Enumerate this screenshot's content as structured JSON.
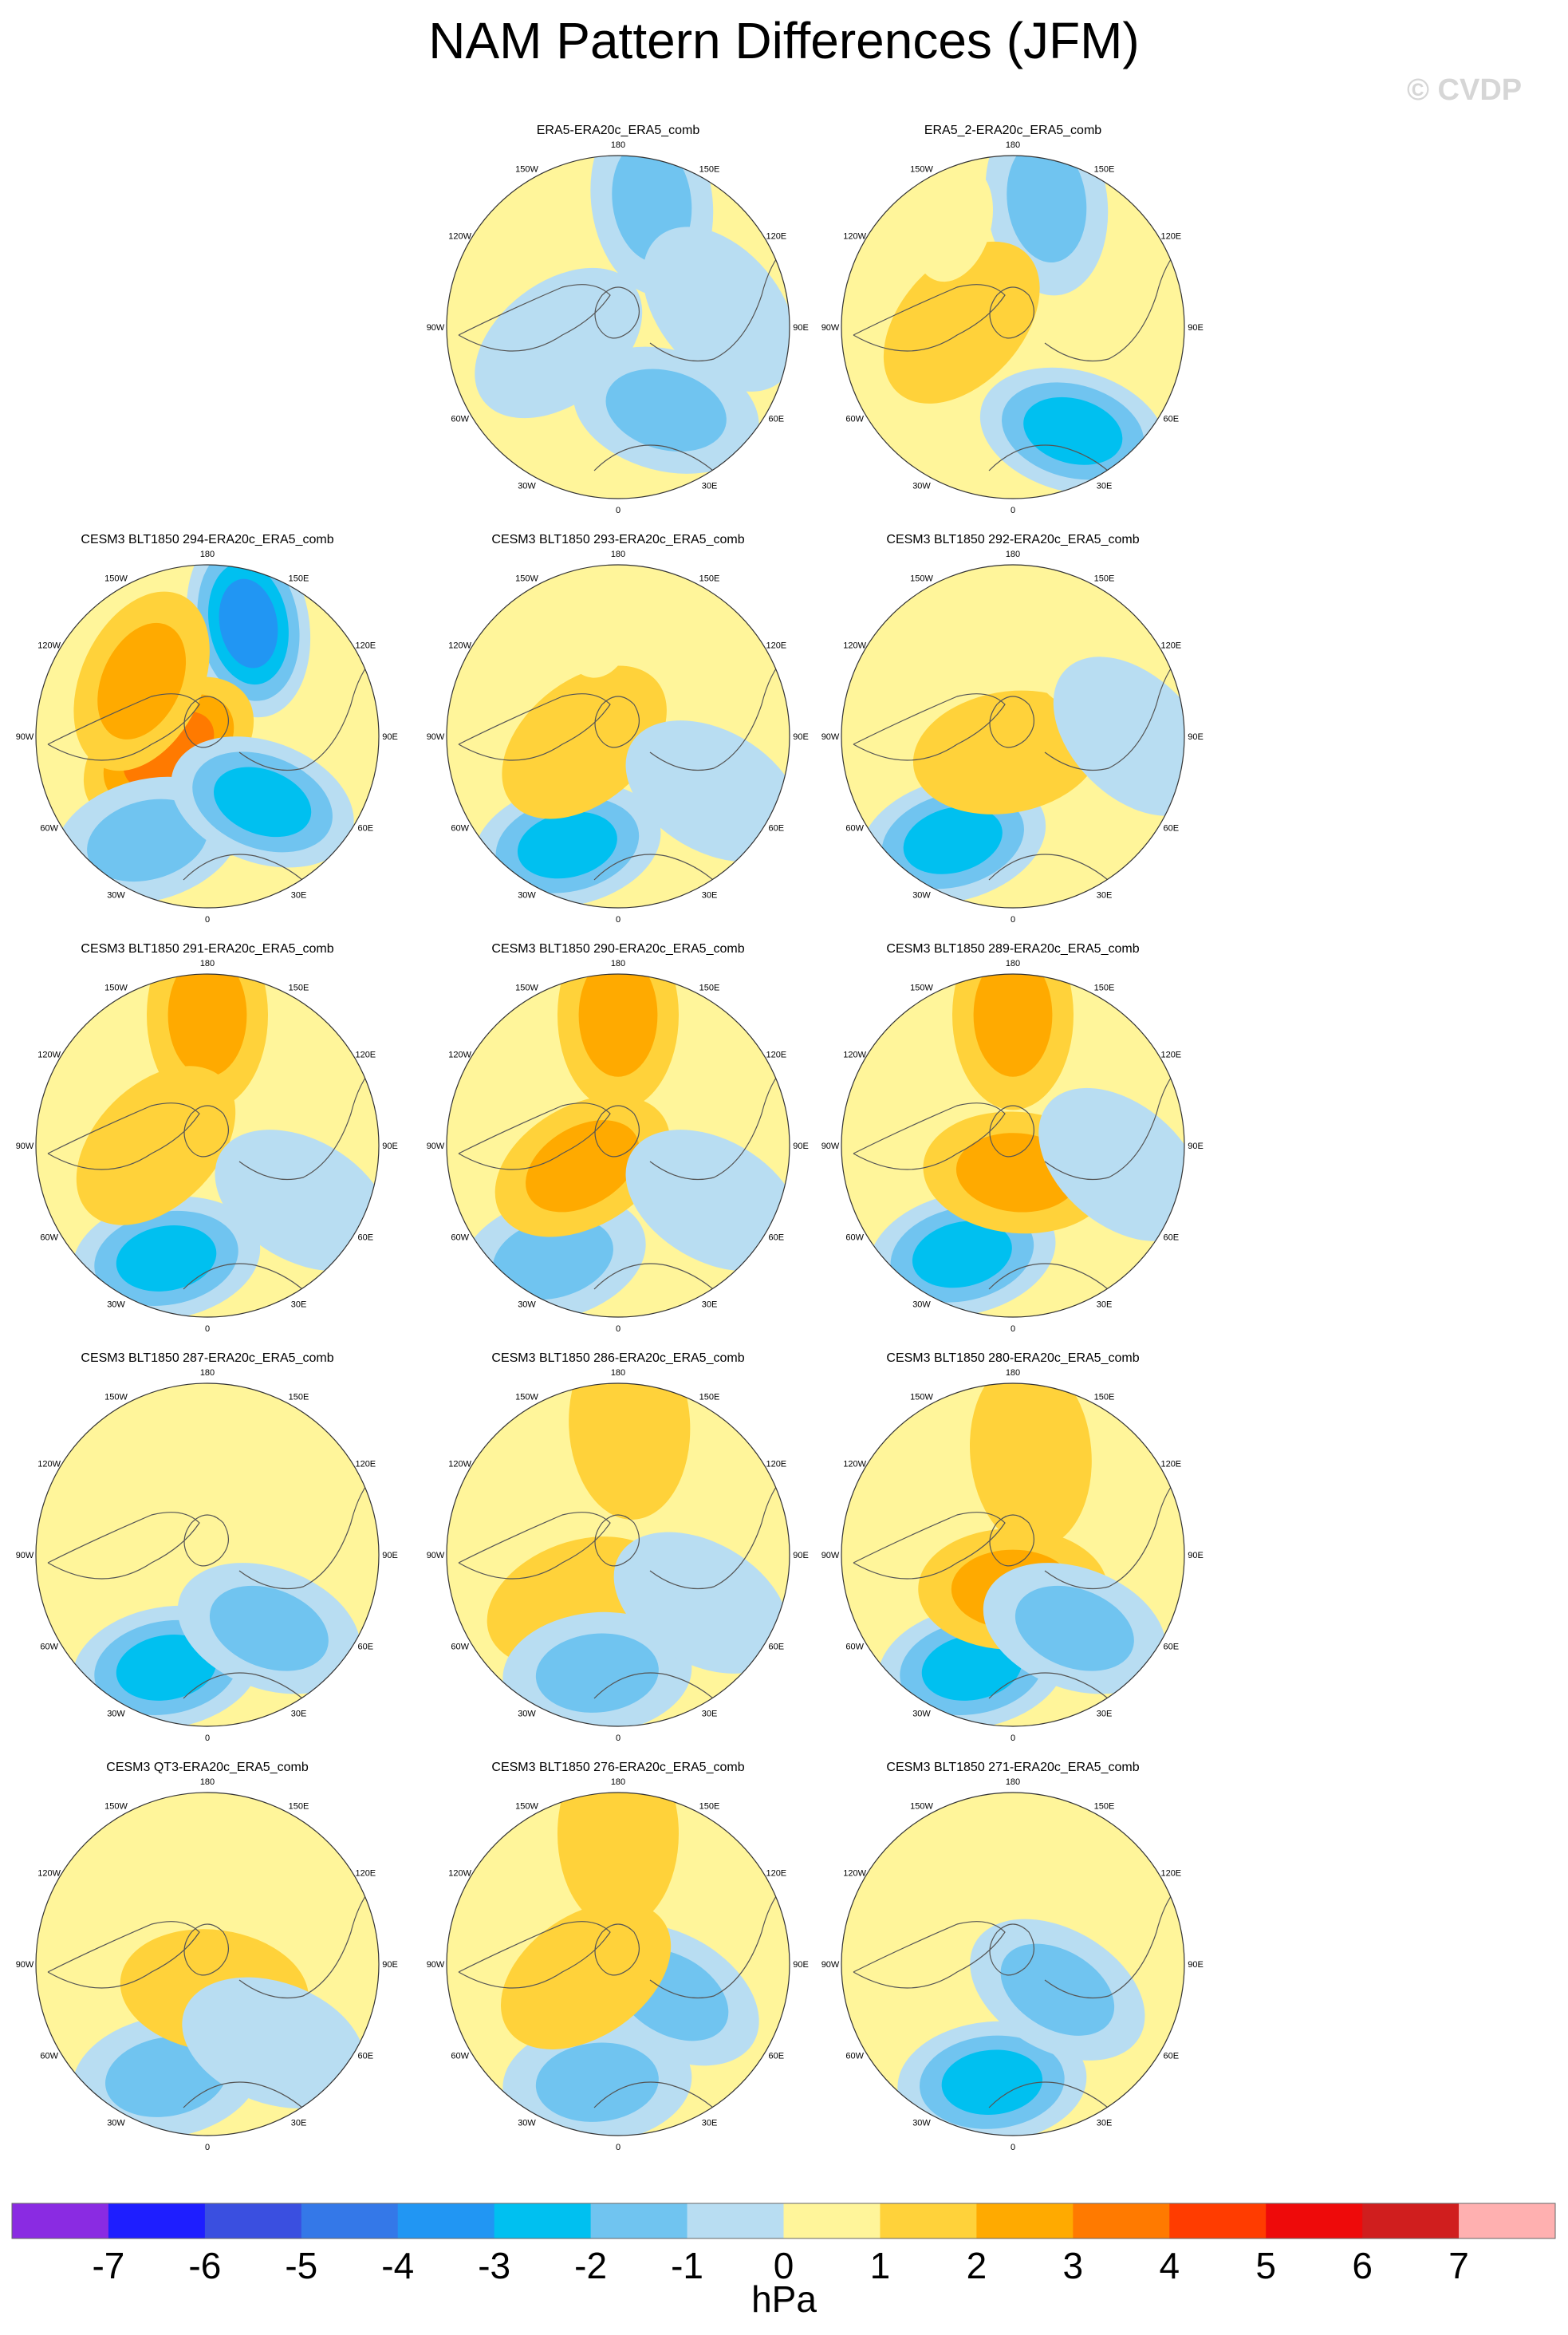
{
  "title": "NAM Pattern Differences (JFM)",
  "watermark": "© CVDP",
  "units": "hPa",
  "colors": {
    "neg7": "#8a2be2",
    "neg6": "#1e1eff",
    "neg5": "#3a4fe0",
    "neg4": "#3478e8",
    "neg3": "#2196f3",
    "neg2": "#00c0f0",
    "neg1": "#70c4f0",
    "neg0": "#b8ddf2",
    "pos0": "#fff59a",
    "pos1": "#ffd23a",
    "pos2": "#ffaa00",
    "pos3": "#ff7a00",
    "pos4": "#ff3c00",
    "pos5": "#ee0a0a",
    "pos6": "#d01e1e",
    "pos7": "#ffb0b0",
    "coast": "#555555",
    "frame": "#333333"
  },
  "longitude_labels": {
    "top": "180",
    "bottom": "0",
    "upper_left": "150W",
    "upper_right": "150E",
    "mid_upper_left": "120W",
    "mid_upper_right": "120E",
    "left": "90W",
    "right": "90E",
    "mid_lower_left": "60W",
    "mid_lower_right": "60E",
    "lower_left": "30W",
    "lower_right": "30E"
  },
  "chart_data": {
    "type": "heatmap",
    "projection": "polar-stereographic-north",
    "colorbar": {
      "colors": [
        "#8a2be2",
        "#1e1eff",
        "#3a4fe0",
        "#3478e8",
        "#2196f3",
        "#00c0f0",
        "#70c4f0",
        "#b8ddf2",
        "#fff59a",
        "#ffd23a",
        "#ffaa00",
        "#ff7a00",
        "#ff3c00",
        "#ee0a0a",
        "#d01e1e",
        "#ffb0b0"
      ],
      "ticks": [
        "-7",
        "-6",
        "-5",
        "-4",
        "-3",
        "-2",
        "-1",
        "0",
        "1",
        "2",
        "3",
        "4",
        "5",
        "6",
        "7"
      ],
      "label": "hPa"
    },
    "panels": [
      {
        "title": "ERA5-ERA20c_ERA5_comb",
        "row": 0,
        "col": 1,
        "features": [
          {
            "lon": 165,
            "lat": 52,
            "level": -2
          },
          {
            "lon": 30,
            "lat": 62,
            "level": -2
          },
          {
            "lon": 100,
            "lat": 60,
            "level": -1
          },
          {
            "lon": -75,
            "lat": 72,
            "level": -1
          }
        ]
      },
      {
        "title": "ERA5_2-ERA20c_ERA5_comb",
        "row": 0,
        "col": 2,
        "features": [
          {
            "lon": 165,
            "lat": 52,
            "level": -2
          },
          {
            "lon": 30,
            "lat": 55,
            "level": -3
          },
          {
            "lon": -95,
            "lat": 75,
            "level": 1
          },
          {
            "lon": -150,
            "lat": 55,
            "level": 0
          }
        ]
      },
      {
        "title": "CESM3 BLT1850 294-ERA20c_ERA5_comb",
        "row": 1,
        "col": 0,
        "features": [
          {
            "lon": 160,
            "lat": 55,
            "level": -4
          },
          {
            "lon": -70,
            "lat": 78,
            "level": 3
          },
          {
            "lon": -130,
            "lat": 65,
            "level": 2
          },
          {
            "lon": -30,
            "lat": 55,
            "level": -2
          },
          {
            "lon": 40,
            "lat": 65,
            "level": -3
          }
        ]
      },
      {
        "title": "CESM3 BLT1850 293-ERA20c_ERA5_comb",
        "row": 1,
        "col": 1,
        "features": [
          {
            "lon": -25,
            "lat": 55,
            "level": -3
          },
          {
            "lon": -80,
            "lat": 80,
            "level": 1
          },
          {
            "lon": 60,
            "lat": 58,
            "level": -1
          },
          {
            "lon": -170,
            "lat": 55,
            "level": 0
          }
        ]
      },
      {
        "title": "CESM3 BLT1850 292-ERA20c_ERA5_comb",
        "row": 1,
        "col": 2,
        "features": [
          {
            "lon": -30,
            "lat": 55,
            "level": -3
          },
          {
            "lon": -20,
            "lat": 85,
            "level": 1
          },
          {
            "lon": 150,
            "lat": 60,
            "level": 0
          },
          {
            "lon": 90,
            "lat": 55,
            "level": -1
          }
        ]
      },
      {
        "title": "CESM3 BLT1850 291-ERA20c_ERA5_comb",
        "row": 2,
        "col": 0,
        "features": [
          {
            "lon": 180,
            "lat": 52,
            "level": 2
          },
          {
            "lon": -20,
            "lat": 55,
            "level": -3
          },
          {
            "lon": -90,
            "lat": 75,
            "level": 1
          },
          {
            "lon": 60,
            "lat": 58,
            "level": -1
          }
        ]
      },
      {
        "title": "CESM3 BLT1850 290-ERA20c_ERA5_comb",
        "row": 2,
        "col": 1,
        "features": [
          {
            "lon": 180,
            "lat": 52,
            "level": 2
          },
          {
            "lon": -30,
            "lat": 52,
            "level": -2
          },
          {
            "lon": -60,
            "lat": 78,
            "level": 2
          },
          {
            "lon": 60,
            "lat": 58,
            "level": -1
          }
        ]
      },
      {
        "title": "CESM3 BLT1850 289-ERA20c_ERA5_comb",
        "row": 2,
        "col": 2,
        "features": [
          {
            "lon": 180,
            "lat": 52,
            "level": 2
          },
          {
            "lon": -25,
            "lat": 55,
            "level": -3
          },
          {
            "lon": 10,
            "lat": 82,
            "level": 2
          },
          {
            "lon": 80,
            "lat": 58,
            "level": -1
          }
        ]
      },
      {
        "title": "CESM3 BLT1850 287-ERA20c_ERA5_comb",
        "row": 3,
        "col": 0,
        "features": [
          {
            "lon": -20,
            "lat": 55,
            "level": -3
          },
          {
            "lon": 40,
            "lat": 62,
            "level": -2
          },
          {
            "lon": 150,
            "lat": 55,
            "level": 0
          },
          {
            "lon": -110,
            "lat": 55,
            "level": 0
          }
        ]
      },
      {
        "title": "CESM3 BLT1850 286-ERA20c_ERA5_comb",
        "row": 3,
        "col": 1,
        "features": [
          {
            "lon": 175,
            "lat": 52,
            "level": 1
          },
          {
            "lon": -40,
            "lat": 72,
            "level": 1
          },
          {
            "lon": -10,
            "lat": 55,
            "level": -2
          },
          {
            "lon": 60,
            "lat": 62,
            "level": -1
          }
        ]
      },
      {
        "title": "CESM3 BLT1850 280-ERA20c_ERA5_comb",
        "row": 3,
        "col": 2,
        "features": [
          {
            "lon": -20,
            "lat": 55,
            "level": -3
          },
          {
            "lon": 0,
            "lat": 80,
            "level": 2
          },
          {
            "lon": 40,
            "lat": 62,
            "level": -2
          },
          {
            "lon": 170,
            "lat": 60,
            "level": 1
          }
        ]
      },
      {
        "title": "CESM3 QT3-ERA20c_ERA5_comb",
        "row": 4,
        "col": 0,
        "features": [
          {
            "lon": -20,
            "lat": 55,
            "level": -2
          },
          {
            "lon": 15,
            "lat": 82,
            "level": 1
          },
          {
            "lon": 40,
            "lat": 60,
            "level": -1
          }
        ]
      },
      {
        "title": "CESM3 BLT1850 276-ERA20c_ERA5_comb",
        "row": 4,
        "col": 1,
        "features": [
          {
            "lon": 180,
            "lat": 52,
            "level": 1
          },
          {
            "lon": -10,
            "lat": 55,
            "level": -2
          },
          {
            "lon": 60,
            "lat": 72,
            "level": -2
          },
          {
            "lon": -70,
            "lat": 80,
            "level": 1
          }
        ]
      },
      {
        "title": "CESM3 BLT1850 271-ERA20c_ERA5_comb",
        "row": 4,
        "col": 2,
        "features": [
          {
            "lon": -10,
            "lat": 55,
            "level": -3
          },
          {
            "lon": 60,
            "lat": 75,
            "level": -2
          },
          {
            "lon": 170,
            "lat": 55,
            "level": 0
          }
        ]
      }
    ]
  }
}
